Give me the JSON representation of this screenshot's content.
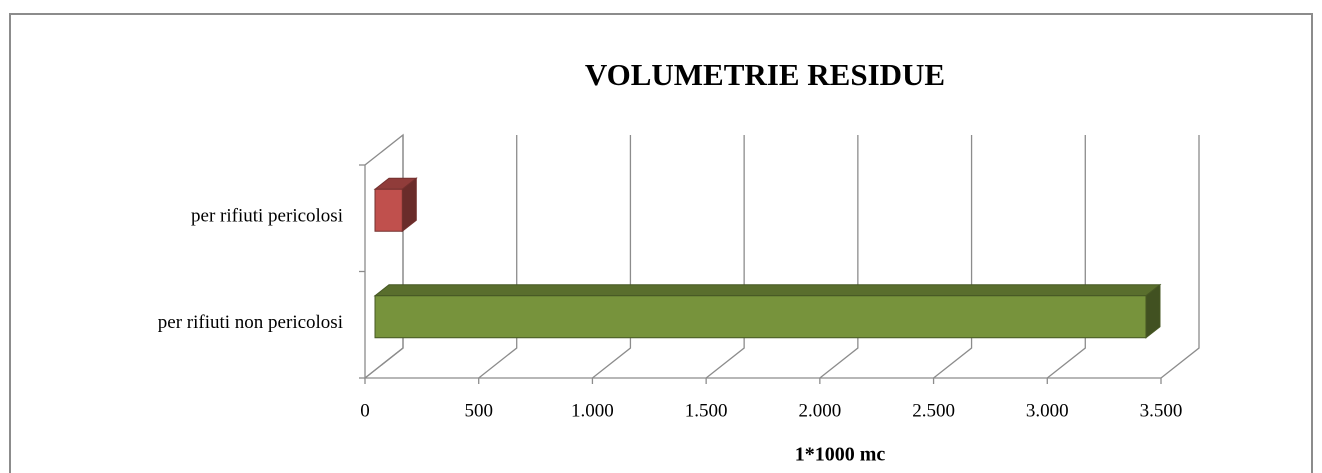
{
  "chart_data": {
    "type": "bar3d_horizontal",
    "title": "VOLUMETRIE RESIDUE",
    "x_label": "1*1000 mc",
    "categories": [
      "per rifiuti non pericolosi",
      "per rifiuti pericolosi"
    ],
    "values": [
      3390,
      120
    ],
    "colors": [
      "#77933c",
      "#c0504d"
    ],
    "xlim": [
      0,
      3500
    ],
    "xticks": [
      0,
      500,
      {
        "value": 1000,
        "label": "1.000"
      },
      {
        "value": 1500,
        "label": "1.500"
      },
      {
        "value": 2000,
        "label": "2.000"
      },
      {
        "value": 2500,
        "label": "2.500"
      },
      {
        "value": 3000,
        "label": "3.000"
      },
      {
        "value": 3500,
        "label": "3.500"
      }
    ],
    "grid": true
  }
}
